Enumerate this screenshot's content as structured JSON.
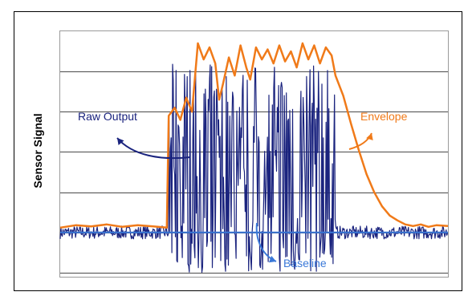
{
  "chart_data": {
    "type": "line",
    "title": "",
    "xlabel": "",
    "ylabel": "Sensor Signal",
    "grid": true,
    "legend": "none",
    "series_names": [
      "Raw Output",
      "Envelope",
      "Baseline"
    ],
    "annotations": {
      "raw": "Raw Output",
      "envelope": "Envelope",
      "baseline": "Baseline"
    },
    "colors": {
      "raw": "#1a237e",
      "envelope": "#f07a19",
      "baseline": "#3a78d8",
      "grid": "#4a4a4a",
      "frame": "#000000"
    },
    "ylim": [
      -1.1,
      5.0
    ],
    "xlim": [
      0,
      100
    ],
    "baseline_value": 0,
    "active_region": [
      28,
      71
    ],
    "envelope_points": [
      [
        0,
        0.12
      ],
      [
        4,
        0.18
      ],
      [
        8,
        0.15
      ],
      [
        12,
        0.2
      ],
      [
        16,
        0.14
      ],
      [
        20,
        0.18
      ],
      [
        24,
        0.15
      ],
      [
        27.5,
        0.12
      ],
      [
        28,
        2.9
      ],
      [
        29.5,
        3.1
      ],
      [
        31,
        2.8
      ],
      [
        32.5,
        3.35
      ],
      [
        34,
        3.0
      ],
      [
        35.5,
        4.7
      ],
      [
        37,
        4.3
      ],
      [
        38.5,
        4.6
      ],
      [
        40,
        4.2
      ],
      [
        41,
        3.3
      ],
      [
        42,
        3.7
      ],
      [
        43.5,
        4.35
      ],
      [
        45,
        3.9
      ],
      [
        46.5,
        4.65
      ],
      [
        48,
        4.1
      ],
      [
        49,
        3.8
      ],
      [
        50.5,
        4.6
      ],
      [
        52,
        4.3
      ],
      [
        53.5,
        4.55
      ],
      [
        55,
        4.2
      ],
      [
        56.5,
        4.65
      ],
      [
        58,
        4.25
      ],
      [
        59.5,
        4.5
      ],
      [
        61,
        4.1
      ],
      [
        62.5,
        4.7
      ],
      [
        64,
        4.3
      ],
      [
        65.5,
        4.65
      ],
      [
        67,
        4.2
      ],
      [
        68.5,
        4.6
      ],
      [
        70,
        4.4
      ],
      [
        71,
        3.9
      ],
      [
        73,
        3.4
      ],
      [
        75,
        2.7
      ],
      [
        77,
        2.05
      ],
      [
        79,
        1.45
      ],
      [
        81,
        1.0
      ],
      [
        83,
        0.65
      ],
      [
        85,
        0.42
      ],
      [
        87,
        0.3
      ],
      [
        89,
        0.2
      ],
      [
        91,
        0.16
      ],
      [
        93,
        0.2
      ],
      [
        95,
        0.14
      ],
      [
        97,
        0.18
      ],
      [
        100,
        0.16
      ]
    ],
    "raw_range": [
      -1.0,
      4.2
    ]
  }
}
